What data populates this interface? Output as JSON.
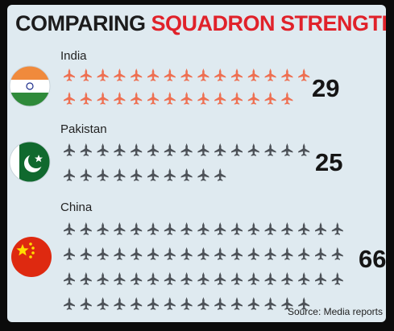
{
  "header": {
    "title_part1": "COMPARING",
    "title_part2": "SQUADRON STRENGTH"
  },
  "source": "Source: Media reports",
  "colors": {
    "accent": "#e0222a",
    "india_jet": "#ee7052",
    "pakistan_jet": "#4d5258",
    "china_jet": "#4d5258",
    "background": "#dfeaf0"
  },
  "icons": {
    "unit": "fighter-jet-icon",
    "india": "india-flag-icon",
    "pakistan": "pakistan-flag-icon",
    "china": "china-flag-icon"
  },
  "chart_data": {
    "type": "pictograph",
    "title": "COMPARING SQUADRON STRENGTH",
    "categories": [
      "India",
      "Pakistan",
      "China"
    ],
    "values": [
      29,
      25,
      66
    ],
    "unit_per_icon": 1,
    "source": "Source: Media reports"
  }
}
